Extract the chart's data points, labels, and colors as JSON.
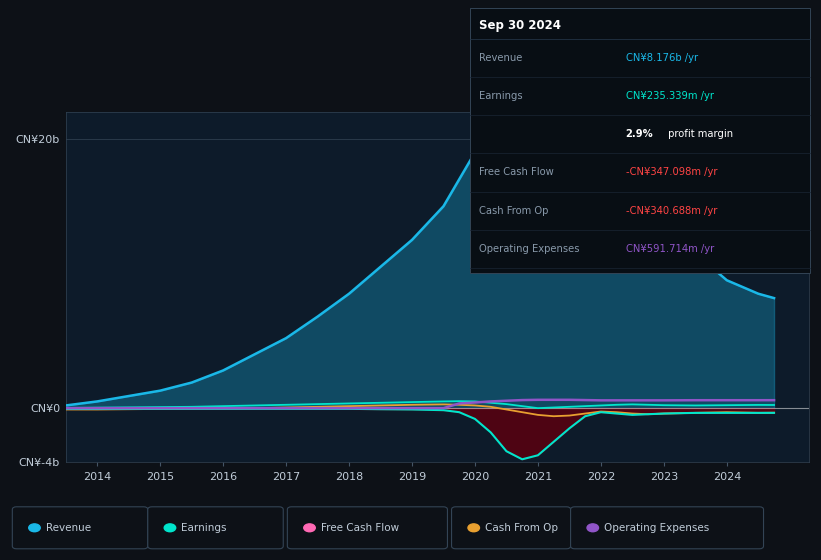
{
  "background_color": "#0d1117",
  "plot_bg_color": "#0d1b2a",
  "years": [
    2013.5,
    2014.0,
    2014.5,
    2015.0,
    2015.5,
    2016.0,
    2016.5,
    2017.0,
    2017.5,
    2018.0,
    2018.5,
    2019.0,
    2019.5,
    2019.75,
    2020.0,
    2020.25,
    2020.5,
    2020.75,
    2021.0,
    2021.25,
    2021.5,
    2021.75,
    2022.0,
    2022.25,
    2022.5,
    2022.75,
    2023.0,
    2023.5,
    2024.0,
    2024.5,
    2024.75
  ],
  "revenue": [
    0.2,
    0.5,
    0.9,
    1.3,
    1.9,
    2.8,
    4.0,
    5.2,
    6.8,
    8.5,
    10.5,
    12.5,
    15.0,
    17.0,
    19.0,
    19.5,
    17.5,
    14.0,
    10.5,
    10.2,
    10.5,
    11.0,
    12.5,
    13.5,
    14.0,
    13.5,
    13.0,
    11.5,
    9.5,
    8.5,
    8.176
  ],
  "earnings": [
    0.02,
    0.04,
    0.06,
    0.08,
    0.1,
    0.15,
    0.2,
    0.25,
    0.3,
    0.35,
    0.4,
    0.45,
    0.5,
    0.52,
    0.5,
    0.4,
    0.3,
    0.15,
    0.0,
    0.05,
    0.1,
    0.15,
    0.2,
    0.25,
    0.28,
    0.25,
    0.22,
    0.2,
    0.22,
    0.24,
    0.235
  ],
  "free_cash_flow": [
    -0.05,
    -0.05,
    -0.05,
    -0.05,
    -0.05,
    -0.05,
    -0.05,
    -0.05,
    -0.05,
    -0.05,
    -0.08,
    -0.1,
    -0.15,
    -0.3,
    -0.8,
    -1.8,
    -3.2,
    -3.8,
    -3.5,
    -2.5,
    -1.5,
    -0.6,
    -0.3,
    -0.4,
    -0.5,
    -0.45,
    -0.4,
    -0.35,
    -0.35,
    -0.35,
    -0.347
  ],
  "cash_from_op": [
    -0.1,
    -0.1,
    -0.08,
    -0.06,
    -0.04,
    -0.02,
    0.0,
    0.05,
    0.1,
    0.15,
    0.2,
    0.25,
    0.28,
    0.25,
    0.2,
    0.1,
    -0.1,
    -0.3,
    -0.5,
    -0.6,
    -0.55,
    -0.4,
    -0.25,
    -0.3,
    -0.4,
    -0.45,
    -0.4,
    -0.35,
    -0.3,
    -0.35,
    -0.341
  ],
  "operating_expenses": [
    0.0,
    0.0,
    0.0,
    0.0,
    0.0,
    0.0,
    0.0,
    0.0,
    0.0,
    0.0,
    0.0,
    0.0,
    0.0,
    0.0,
    0.0,
    0.0,
    0.0,
    0.0,
    0.0,
    0.0,
    0.0,
    0.0,
    0.0,
    0.0,
    0.0,
    0.0,
    0.0,
    0.0,
    0.0,
    0.0,
    0.0
  ],
  "operating_expenses_visible": [
    0.0,
    0.0,
    0.0,
    0.0,
    0.0,
    0.0,
    0.0,
    0.0,
    0.0,
    0.0,
    0.0,
    0.0,
    0.0,
    0.35,
    0.42,
    0.5,
    0.55,
    0.6,
    0.62,
    0.62,
    0.62,
    0.6,
    0.58,
    0.58,
    0.58,
    0.58,
    0.58,
    0.59,
    0.59,
    0.59,
    0.592
  ],
  "revenue_color": "#1ab8e8",
  "earnings_color": "#00e5cc",
  "free_cash_flow_color": "#ff69b4",
  "cash_from_op_color": "#e8a030",
  "operating_expenses_color": "#9055c8",
  "fcf_fill_color": "#5a0010",
  "ylim_min": -4,
  "ylim_max": 22,
  "xlim_min": 2013.5,
  "xlim_max": 2025.3,
  "ytick_labels": [
    "CN¥-4b",
    "CN¥0",
    "CN¥20b"
  ],
  "ytick_values": [
    -4,
    0,
    20
  ],
  "xtick_labels": [
    "2014",
    "2015",
    "2016",
    "2017",
    "2018",
    "2019",
    "2020",
    "2021",
    "2022",
    "2023",
    "2024"
  ],
  "xtick_values": [
    2014,
    2015,
    2016,
    2017,
    2018,
    2019,
    2020,
    2021,
    2022,
    2023,
    2024
  ],
  "legend_items": [
    "Revenue",
    "Earnings",
    "Free Cash Flow",
    "Cash From Op",
    "Operating Expenses"
  ],
  "legend_colors": [
    "#1ab8e8",
    "#00e5cc",
    "#ff69b4",
    "#e8a030",
    "#9055c8"
  ],
  "info_box": {
    "title": "Sep 30 2024",
    "rows": [
      {
        "label": "Revenue",
        "value": "CN¥8.176b /yr",
        "value_color": "#1ab8e8"
      },
      {
        "label": "Earnings",
        "value": "CN¥235.339m /yr",
        "value_color": "#00e5cc"
      },
      {
        "label": "",
        "value_bold": "2.9%",
        "value_rest": " profit margin",
        "value_color": "#ffffff"
      },
      {
        "label": "Free Cash Flow",
        "value": "-CN¥347.098m /yr",
        "value_color": "#ff4444"
      },
      {
        "label": "Cash From Op",
        "value": "-CN¥340.688m /yr",
        "value_color": "#ff4444"
      },
      {
        "label": "Operating Expenses",
        "value": "CN¥591.714m /yr",
        "value_color": "#9055c8"
      }
    ]
  }
}
